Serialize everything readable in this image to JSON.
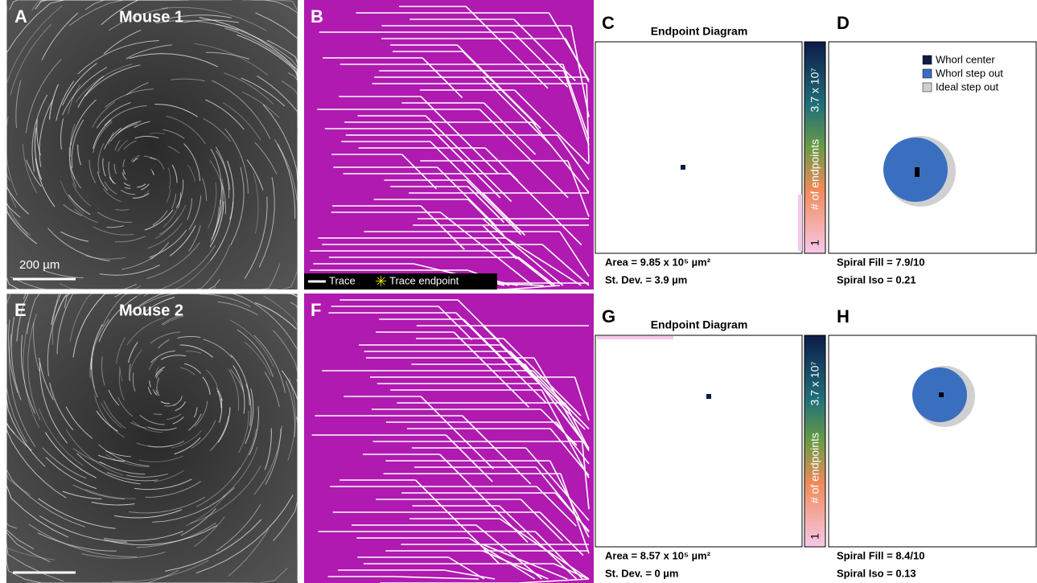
{
  "rows": [
    {
      "micrograph": {
        "label": "A",
        "title": "Mouse 1",
        "scale_bar": "200 µm"
      },
      "trace": {
        "label": "B",
        "legend": [
          "Trace",
          "Trace endpoint"
        ]
      },
      "endpoint": {
        "label": "C",
        "title": "Endpoint Diagram",
        "colorbar": {
          "max": "3.7 x 10⁷",
          "name": "# of endpoints",
          "min": "1"
        },
        "stats": [
          "Area = 9.85 x 10⁵ µm²",
          "St. Dev. = 3.9 µm"
        ]
      },
      "whorl": {
        "label": "D",
        "legend": [
          "Whorl center",
          "Whorl step out",
          "Ideal step out"
        ],
        "stats": [
          "Spiral Fill = 7.9/10",
          "Spiral Iso = 0.21"
        ]
      }
    },
    {
      "micrograph": {
        "label": "E",
        "title": "Mouse 2"
      },
      "trace": {
        "label": "F"
      },
      "endpoint": {
        "label": "G",
        "title": "Endpoint Diagram",
        "colorbar": {
          "max": "3.7 x 10⁷",
          "name": "# of endpoints",
          "min": "1"
        },
        "stats": [
          "Area = 8.57 x 10⁵ µm²",
          "St. Dev. = 0 µm"
        ]
      },
      "whorl": {
        "label": "H",
        "stats": [
          "Spiral Fill = 8.4/10",
          "Spiral Iso = 0.13"
        ]
      }
    }
  ]
}
